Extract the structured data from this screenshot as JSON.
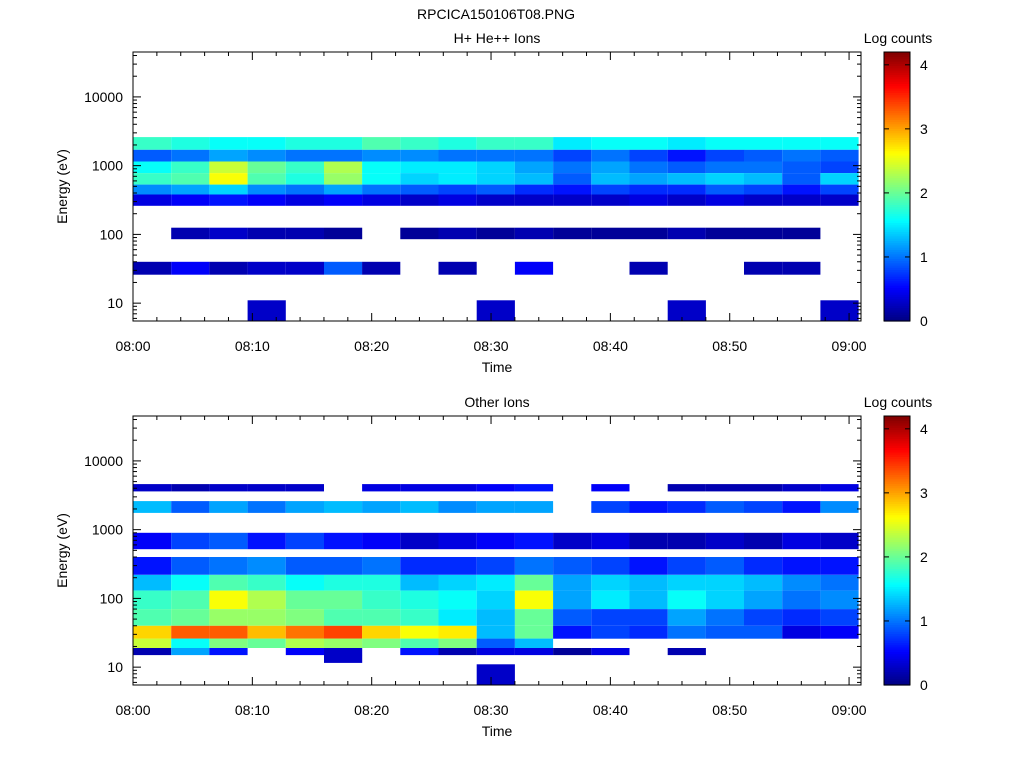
{
  "figure_title": "RPCICA150106T08.PNG",
  "chart_data": [
    {
      "type": "heatmap",
      "title": "H+ He++ Ions",
      "xlabel": "Time",
      "ylabel": "Energy (eV)",
      "x_ticks": [
        "08:00",
        "08:10",
        "08:20",
        "08:30",
        "08:40",
        "08:50",
        "09:00"
      ],
      "x_range": [
        "08:00",
        "09:01"
      ],
      "y_scale": "log",
      "y_ticks": [
        10,
        100,
        1000,
        10000
      ],
      "y_tick_labels": [
        "10",
        "100",
        "1000",
        "10000"
      ],
      "y_range": [
        5.5,
        45000
      ],
      "colorbar": {
        "label": "Log counts",
        "range": [
          0,
          4.2
        ],
        "ticks": [
          0,
          1,
          2,
          3,
          4
        ],
        "ticklabels": [
          "0",
          "1",
          "2",
          "3",
          "4"
        ],
        "colormap": "jet"
      },
      "time_bins_minutes": [
        0,
        3.2,
        6.4,
        9.6,
        12.8,
        16,
        19.2,
        22.4,
        25.6,
        28.8,
        32,
        35.2,
        38.4,
        41.6,
        44.8,
        48,
        51.2,
        54.4,
        57.6,
        60.8
      ],
      "energy_bands": [
        {
          "label": "~2000 eV",
          "e_low": 1700,
          "e_high": 2600,
          "values": [
            1.8,
            1.7,
            1.6,
            1.6,
            1.7,
            1.7,
            1.9,
            1.8,
            1.7,
            1.8,
            1.8,
            1.5,
            1.6,
            1.6,
            1.5,
            1.6,
            1.6,
            1.6,
            1.6
          ]
        },
        {
          "label": "~1300 eV",
          "e_low": 1150,
          "e_high": 1700,
          "values": [
            0.9,
            1.0,
            1.2,
            1.1,
            1.0,
            1.0,
            1.1,
            1.1,
            1.0,
            1.0,
            1.0,
            0.8,
            1.0,
            0.8,
            0.6,
            0.8,
            0.9,
            1.0,
            0.9
          ]
        },
        {
          "label": "~900 eV",
          "e_low": 780,
          "e_high": 1150,
          "values": [
            1.6,
            1.8,
            2.4,
            2.0,
            1.8,
            2.3,
            1.6,
            1.5,
            1.5,
            1.4,
            1.2,
            1.0,
            1.2,
            1.0,
            0.9,
            1.0,
            1.0,
            0.9,
            0.8
          ]
        },
        {
          "label": "~650 eV",
          "e_low": 530,
          "e_high": 780,
          "values": [
            1.8,
            1.9,
            2.6,
            1.9,
            1.7,
            2.2,
            1.6,
            1.4,
            1.5,
            1.4,
            1.3,
            0.9,
            1.3,
            1.2,
            1.3,
            1.4,
            1.3,
            0.9,
            1.4
          ]
        },
        {
          "label": "~450 eV",
          "e_low": 380,
          "e_high": 530,
          "values": [
            1.1,
            1.2,
            1.4,
            1.1,
            1.0,
            1.2,
            1.0,
            0.9,
            0.8,
            0.9,
            0.7,
            0.6,
            0.8,
            0.7,
            0.7,
            0.9,
            0.8,
            0.6,
            0.8
          ]
        },
        {
          "label": "~300 eV",
          "e_low": 260,
          "e_high": 380,
          "values": [
            0.4,
            0.5,
            0.6,
            0.5,
            0.4,
            0.5,
            0.4,
            0.3,
            0.4,
            0.3,
            0.3,
            0.3,
            0.3,
            0.4,
            0.3,
            0.4,
            0.3,
            0.3,
            0.3
          ]
        },
        {
          "label": "~100 eV",
          "e_low": 85,
          "e_high": 125,
          "values": [
            0,
            0.2,
            0.3,
            0.2,
            0.2,
            0.1,
            0,
            0.1,
            0.2,
            0.1,
            0.2,
            0.1,
            0.1,
            0.1,
            0.2,
            0.1,
            0.1,
            0.1,
            0
          ]
        },
        {
          "label": "~30 eV",
          "e_low": 26,
          "e_high": 40,
          "values": [
            0.2,
            0.5,
            0.2,
            0.3,
            0.3,
            0.9,
            0.2,
            0,
            0.2,
            0,
            0.5,
            0,
            0,
            0.2,
            0,
            0,
            0.2,
            0.2,
            0
          ]
        },
        {
          "label": "~10 eV",
          "e_low": 5.5,
          "e_high": 11,
          "values": [
            0,
            0,
            0,
            0.3,
            0,
            0,
            0,
            0,
            0,
            0.3,
            0,
            0,
            0,
            0,
            0.3,
            0,
            0,
            0,
            0.3
          ]
        }
      ]
    },
    {
      "type": "heatmap",
      "title": "Other Ions",
      "xlabel": "Time",
      "ylabel": "Energy (eV)",
      "x_ticks": [
        "08:00",
        "08:10",
        "08:20",
        "08:30",
        "08:40",
        "08:50",
        "09:00"
      ],
      "x_range": [
        "08:00",
        "09:01"
      ],
      "y_scale": "log",
      "y_ticks": [
        10,
        100,
        1000,
        10000
      ],
      "y_tick_labels": [
        "10",
        "100",
        "1000",
        "10000"
      ],
      "y_range": [
        5.5,
        45000
      ],
      "colorbar": {
        "label": "Log counts",
        "range": [
          0,
          4.2
        ],
        "ticks": [
          0,
          1,
          2,
          3,
          4
        ],
        "ticklabels": [
          "0",
          "1",
          "2",
          "3",
          "4"
        ],
        "colormap": "jet"
      },
      "time_bins_minutes": [
        0,
        3.2,
        6.4,
        9.6,
        12.8,
        16,
        19.2,
        22.4,
        25.6,
        28.8,
        32,
        35.2,
        38.4,
        41.6,
        44.8,
        48,
        51.2,
        54.4,
        57.6,
        60.8
      ],
      "energy_bands": [
        {
          "label": "~4000 eV",
          "e_low": 3600,
          "e_high": 4600,
          "values": [
            0.3,
            0.2,
            0.3,
            0.3,
            0.3,
            0,
            0.4,
            0.4,
            0.4,
            0.5,
            0.6,
            0,
            0.5,
            0,
            0.2,
            0.2,
            0.2,
            0.3,
            0.4
          ]
        },
        {
          "label": "~2000 eV",
          "e_low": 1750,
          "e_high": 2600,
          "values": [
            1.3,
            0.9,
            1.2,
            1.0,
            1.2,
            1.3,
            1.2,
            1.3,
            1.1,
            1.2,
            1.2,
            0,
            0.8,
            0.6,
            0.7,
            0.9,
            0.8,
            0.6,
            1.1
          ]
        },
        {
          "label": "~700 eV",
          "e_low": 520,
          "e_high": 900,
          "values": [
            0.5,
            0.8,
            0.9,
            0.6,
            0.8,
            0.6,
            0.5,
            0.3,
            0.4,
            0.5,
            0.6,
            0.3,
            0.4,
            0.2,
            0.2,
            0.3,
            0.2,
            0.4,
            0.3
          ]
        },
        {
          "label": "~300 eV",
          "e_low": 220,
          "e_high": 400,
          "values": [
            0.6,
            0.9,
            1.0,
            1.1,
            0.9,
            0.9,
            1.0,
            0.7,
            0.7,
            0.8,
            1.0,
            0.9,
            0.8,
            0.6,
            0.8,
            0.9,
            0.7,
            0.6,
            0.6
          ]
        },
        {
          "label": "~170 eV",
          "e_low": 130,
          "e_high": 220,
          "values": [
            1.3,
            1.6,
            1.9,
            1.8,
            1.6,
            1.7,
            1.7,
            1.3,
            1.4,
            1.5,
            2.0,
            1.2,
            1.4,
            1.3,
            1.4,
            1.4,
            1.3,
            1.1,
            1.0
          ]
        },
        {
          "label": "~95 eV",
          "e_low": 70,
          "e_high": 130,
          "values": [
            1.8,
            1.9,
            2.6,
            2.3,
            2.0,
            2.0,
            1.8,
            1.7,
            1.6,
            1.4,
            2.6,
            1.2,
            1.5,
            1.3,
            1.6,
            1.4,
            1.2,
            1.0,
            1.1
          ]
        },
        {
          "label": "~55 eV",
          "e_low": 40,
          "e_high": 70,
          "values": [
            1.9,
            2.0,
            2.2,
            2.2,
            2.1,
            1.9,
            1.9,
            1.8,
            1.5,
            1.3,
            2.0,
            0.9,
            0.8,
            0.8,
            1.2,
            1.0,
            0.8,
            0.7,
            0.8
          ]
        },
        {
          "label": "~32 eV",
          "e_low": 26,
          "e_high": 40,
          "values": [
            2.8,
            3.3,
            3.3,
            2.9,
            3.2,
            3.4,
            2.8,
            2.6,
            2.7,
            1.3,
            2.0,
            0.6,
            0.8,
            0.7,
            1.0,
            0.9,
            0.9,
            0.4,
            0.5
          ]
        },
        {
          "label": "~22 eV",
          "e_low": 19,
          "e_high": 26,
          "values": [
            2.4,
            1.6,
            2.1,
            2.0,
            2.3,
            2.2,
            2.1,
            1.9,
            2.1,
            0.9,
            1.3,
            0,
            0,
            0,
            0,
            0,
            0,
            0,
            0
          ]
        },
        {
          "label": "~17 eV",
          "e_low": 15,
          "e_high": 19,
          "values": [
            0.2,
            1.2,
            0.6,
            0,
            0.5,
            0.3,
            0,
            0.6,
            0.2,
            0.4,
            0.4,
            0.1,
            0.4,
            0,
            0.2,
            0,
            0,
            0,
            0
          ]
        },
        {
          "label": "~13 eV",
          "e_low": 11.5,
          "e_high": 15,
          "values": [
            0,
            0,
            0,
            0,
            0,
            0.3,
            0,
            0,
            0,
            0,
            0,
            0,
            0,
            0,
            0,
            0,
            0,
            0,
            0
          ]
        },
        {
          "label": "~8 eV",
          "e_low": 5.5,
          "e_high": 11,
          "values": [
            0,
            0,
            0,
            0,
            0,
            0,
            0,
            0,
            0,
            0.3,
            0,
            0,
            0,
            0,
            0,
            0,
            0,
            0,
            0
          ]
        }
      ]
    }
  ]
}
